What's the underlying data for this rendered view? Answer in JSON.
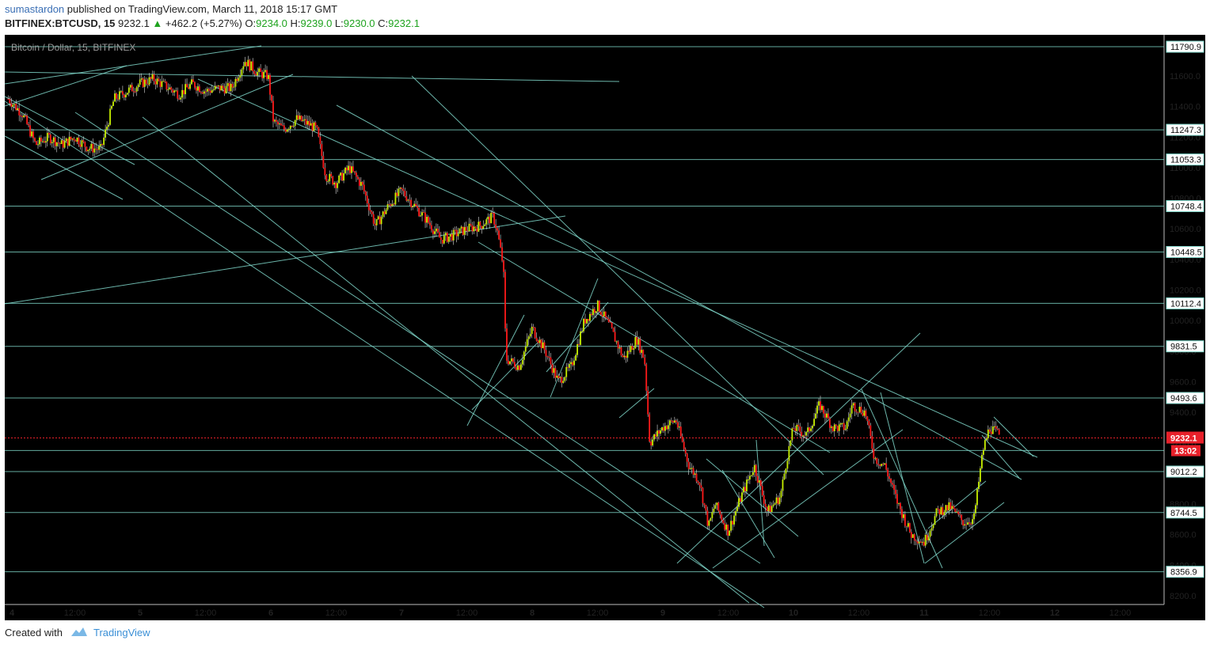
{
  "header": {
    "author": "sumastardon",
    "published": "published on TradingView.com, March 11, 2018 15:17 GMT",
    "symbol": "BITFINEX:BTCUSD, 15",
    "last": "9232.1",
    "change": "+462.2 (+5.27%)",
    "o_label": "O:",
    "o": "9234.0",
    "h_label": "H:",
    "h": "9239.0",
    "l_label": "L:",
    "l": "9230.0",
    "c_label": "C:",
    "c": "9232.1"
  },
  "chart_title": "Bitcoin / Dollar, 15, BITFINEX",
  "footer": {
    "created": "Created with",
    "brand": "TradingView"
  },
  "colors": {
    "background": "#000000",
    "bull": "#c8f000",
    "bear": "#ff1a1a",
    "line": "#7fd6c9",
    "price": "#e8202a"
  },
  "chart_data": {
    "type": "candlestick",
    "title": "Bitcoin / Dollar, 15, BITFINEX",
    "ylim": [
      8100,
      11860
    ],
    "y_ticks": [
      "8200.0",
      "8400.0",
      "8600.0",
      "8800.0",
      "9000.0",
      "9200.0",
      "9400.0",
      "9600.0",
      "9800.0",
      "10000.0",
      "10200.0",
      "10400.0",
      "10600.0",
      "10800.0",
      "11000.0",
      "11200.0",
      "11400.0",
      "11600.0"
    ],
    "x_ticks": [
      "4",
      "12:00",
      "5",
      "12:00",
      "6",
      "12:00",
      "7",
      "12:00",
      "8",
      "12:00",
      "9",
      "12:00",
      "10",
      "12:00",
      "11",
      "12:00",
      "12",
      "12:00"
    ],
    "x_tick_days": [
      4.0,
      4.5,
      5.0,
      5.5,
      6.0,
      6.5,
      7.0,
      7.5,
      8.0,
      8.5,
      9.0,
      9.5,
      10.0,
      10.5,
      11.0,
      11.5,
      12.0,
      12.5
    ],
    "horizontal_levels": [
      11790.9,
      11247.3,
      11053.3,
      10748.4,
      10448.5,
      10112.4,
      9831.5,
      9493.6,
      9150.0,
      9012.2,
      8744.5,
      8356.9
    ],
    "level_labels": [
      "11790.9",
      "11247.3",
      "11053.3",
      "10748.4",
      "10448.5",
      "10112.4",
      "9831.5",
      "9493.6",
      "",
      "9012.2",
      "8744.5",
      "8356.9"
    ],
    "current_price": 9232.1,
    "current_price_label": "9232.1",
    "countdown_label": "13:02",
    "price_path": [
      [
        3.99,
        11450
      ],
      [
        4.1,
        11350
      ],
      [
        4.2,
        11150
      ],
      [
        4.3,
        11200
      ],
      [
        4.4,
        11150
      ],
      [
        4.5,
        11200
      ],
      [
        4.6,
        11130
      ],
      [
        4.7,
        11120
      ],
      [
        4.8,
        11450
      ],
      [
        4.9,
        11500
      ],
      [
        5.0,
        11550
      ],
      [
        5.1,
        11580
      ],
      [
        5.2,
        11530
      ],
      [
        5.3,
        11480
      ],
      [
        5.4,
        11550
      ],
      [
        5.5,
        11500
      ],
      [
        5.6,
        11520
      ],
      [
        5.7,
        11520
      ],
      [
        5.8,
        11700
      ],
      [
        5.9,
        11620
      ],
      [
        5.98,
        11600
      ],
      [
        6.02,
        11300
      ],
      [
        6.1,
        11250
      ],
      [
        6.2,
        11320
      ],
      [
        6.3,
        11280
      ],
      [
        6.35,
        11250
      ],
      [
        6.42,
        10950
      ],
      [
        6.5,
        10900
      ],
      [
        6.6,
        11000
      ],
      [
        6.7,
        10880
      ],
      [
        6.8,
        10620
      ],
      [
        6.9,
        10750
      ],
      [
        7.0,
        10850
      ],
      [
        7.1,
        10750
      ],
      [
        7.2,
        10650
      ],
      [
        7.3,
        10530
      ],
      [
        7.4,
        10560
      ],
      [
        7.5,
        10600
      ],
      [
        7.6,
        10620
      ],
      [
        7.7,
        10680
      ],
      [
        7.73,
        10600
      ],
      [
        7.78,
        10350
      ],
      [
        7.8,
        9750
      ],
      [
        7.9,
        9700
      ],
      [
        8.0,
        9950
      ],
      [
        8.1,
        9800
      ],
      [
        8.2,
        9600
      ],
      [
        8.3,
        9700
      ],
      [
        8.4,
        10000
      ],
      [
        8.5,
        10100
      ],
      [
        8.6,
        9950
      ],
      [
        8.7,
        9750
      ],
      [
        8.8,
        9880
      ],
      [
        8.86,
        9750
      ],
      [
        8.9,
        9200
      ],
      [
        9.0,
        9300
      ],
      [
        9.1,
        9350
      ],
      [
        9.2,
        9050
      ],
      [
        9.28,
        8950
      ],
      [
        9.35,
        8650
      ],
      [
        9.4,
        8800
      ],
      [
        9.5,
        8620
      ],
      [
        9.6,
        8850
      ],
      [
        9.7,
        9050
      ],
      [
        9.8,
        8750
      ],
      [
        9.9,
        8850
      ],
      [
        9.95,
        9100
      ],
      [
        10.0,
        9300
      ],
      [
        10.1,
        9250
      ],
      [
        10.2,
        9450
      ],
      [
        10.3,
        9300
      ],
      [
        10.4,
        9300
      ],
      [
        10.45,
        9450
      ],
      [
        10.55,
        9400
      ],
      [
        10.62,
        9100
      ],
      [
        10.7,
        9050
      ],
      [
        10.8,
        8800
      ],
      [
        10.9,
        8600
      ],
      [
        11.0,
        8550
      ],
      [
        11.1,
        8750
      ],
      [
        11.2,
        8780
      ],
      [
        11.3,
        8680
      ],
      [
        11.38,
        8700
      ],
      [
        11.45,
        9150
      ],
      [
        11.5,
        9300
      ],
      [
        11.58,
        9250
      ]
    ]
  }
}
